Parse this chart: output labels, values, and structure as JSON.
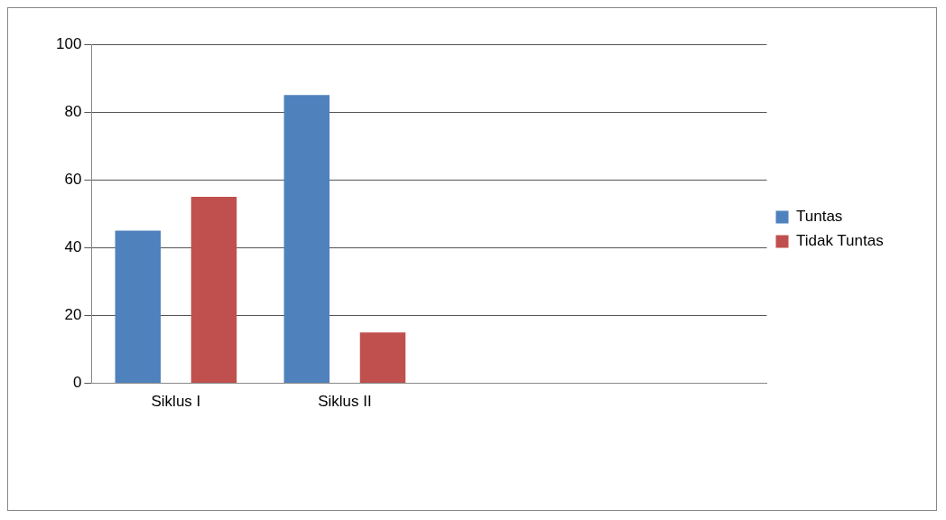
{
  "chart_data": {
    "type": "bar",
    "categories": [
      "Siklus I",
      "Siklus II",
      null,
      null
    ],
    "series": [
      {
        "name": "Tuntas",
        "color": "#4f81bd",
        "values": [
          45,
          85,
          null,
          null
        ]
      },
      {
        "name": "Tidak Tuntas",
        "color": "#c0504d",
        "values": [
          55,
          15,
          null,
          null
        ]
      }
    ],
    "ylim": [
      0,
      100
    ],
    "yticks": [
      0,
      20,
      40,
      60,
      80,
      100
    ],
    "grid": "y",
    "legend": "right"
  }
}
